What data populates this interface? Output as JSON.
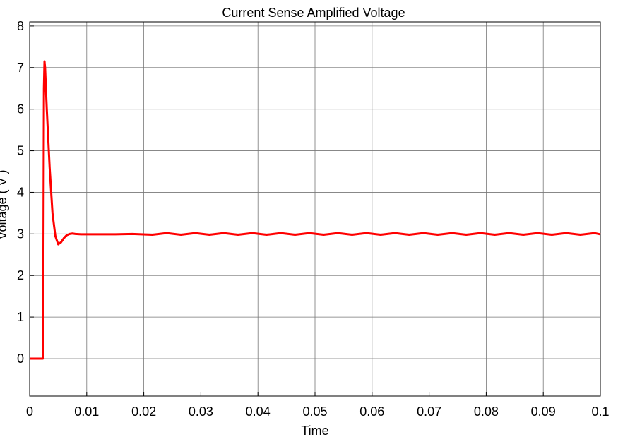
{
  "chart_data": {
    "type": "line",
    "title": "Current Sense Amplified Voltage",
    "xlabel": "Time",
    "ylabel": "Voltage ( V )",
    "xlim": [
      0,
      0.1
    ],
    "ylim": [
      -0.9,
      8.1
    ],
    "grid": true,
    "x_ticks": [
      0,
      0.01,
      0.02,
      0.03,
      0.04,
      0.05,
      0.06,
      0.07,
      0.08,
      0.09,
      0.1
    ],
    "x_tick_labels": [
      "0",
      "0.01",
      "0.02",
      "0.03",
      "0.04",
      "0.05",
      "0.06",
      "0.07",
      "0.08",
      "0.09",
      "0.1"
    ],
    "y_ticks": [
      0,
      1,
      2,
      3,
      4,
      5,
      6,
      7,
      8
    ],
    "y_tick_labels": [
      "0",
      "1",
      "2",
      "3",
      "4",
      "5",
      "6",
      "7",
      "8"
    ],
    "series": [
      {
        "color": "#ff0000",
        "x": [
          0,
          0.0023,
          0.0024,
          0.0025,
          0.0026,
          0.0027,
          0.003,
          0.0035,
          0.004,
          0.0045,
          0.005,
          0.0055,
          0.006,
          0.0065,
          0.007,
          0.0075,
          0.008,
          0.009,
          0.01,
          0.012,
          0.015,
          0.018,
          0.0215,
          0.024,
          0.0265,
          0.029,
          0.0315,
          0.034,
          0.0365,
          0.039,
          0.0415,
          0.044,
          0.0465,
          0.049,
          0.0515,
          0.054,
          0.0565,
          0.059,
          0.0615,
          0.064,
          0.0665,
          0.069,
          0.0715,
          0.074,
          0.0765,
          0.079,
          0.0815,
          0.084,
          0.0865,
          0.089,
          0.0915,
          0.094,
          0.0965,
          0.099,
          0.1
        ],
        "y": [
          0,
          0,
          2.0,
          6.5,
          7.15,
          7.0,
          6.0,
          4.6,
          3.5,
          2.95,
          2.75,
          2.8,
          2.9,
          2.97,
          3.0,
          3.01,
          3.0,
          2.99,
          2.99,
          2.99,
          2.99,
          3.0,
          2.98,
          3.02,
          2.98,
          3.02,
          2.98,
          3.02,
          2.98,
          3.02,
          2.98,
          3.02,
          2.98,
          3.02,
          2.98,
          3.02,
          2.98,
          3.02,
          2.98,
          3.02,
          2.98,
          3.02,
          2.98,
          3.02,
          2.98,
          3.02,
          2.98,
          3.02,
          2.98,
          3.02,
          2.98,
          3.02,
          2.98,
          3.02,
          2.99
        ]
      }
    ]
  }
}
